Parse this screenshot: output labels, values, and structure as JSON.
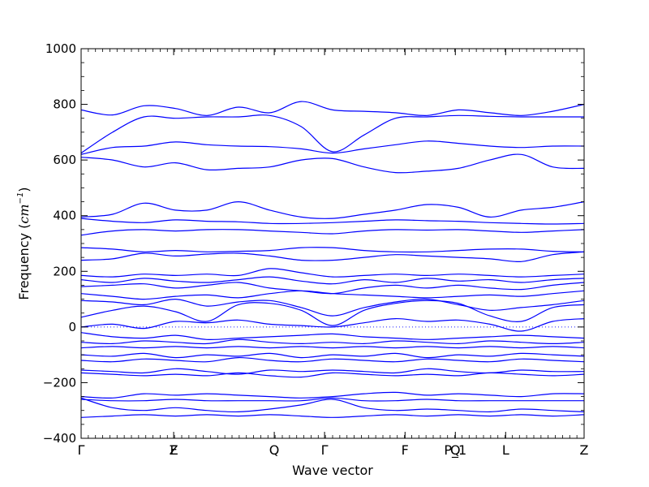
{
  "chart_data": {
    "type": "line",
    "title": "",
    "xlabel": "Wave vector",
    "ylabel": "Frequency (",
    "ylabel_math": "cm",
    "ylabel_sup": "−1",
    "ylabel_close": ")",
    "ylim": [
      -400,
      1000
    ],
    "yticks": [
      -400,
      -200,
      0,
      200,
      400,
      600,
      800,
      1000
    ],
    "ytick_labels": [
      "−400",
      "−200",
      "0",
      "200",
      "400",
      "600",
      "800",
      "1000"
    ],
    "xlim": [
      0,
      10
    ],
    "xticks": [
      0,
      1.84,
      3.84,
      4.84,
      6.44,
      7.44,
      8.44,
      10
    ],
    "xtick_labels": [
      "Γ",
      "Z",
      "Q",
      "Γ",
      "F",
      "P_1",
      "L",
      "Z"
    ],
    "overstruck_labels": [
      {
        "x": 1.84,
        "label": "F"
      },
      {
        "x": 7.44,
        "label": "Q"
      }
    ],
    "zero_line": true,
    "grid": false,
    "legend": "none",
    "line_color": "#0000ff",
    "bands_approx": [
      [
        780,
        762,
        795,
        785,
        760,
        790,
        770,
        810,
        780,
        775,
        770,
        760,
        780,
        770,
        760,
        775,
        800
      ],
      [
        625,
        700,
        755,
        750,
        755,
        755,
        760,
        720,
        630,
        690,
        750,
        755,
        760,
        757,
        755,
        755,
        755
      ],
      [
        620,
        645,
        650,
        665,
        655,
        650,
        648,
        640,
        625,
        640,
        655,
        668,
        660,
        650,
        645,
        650,
        650
      ],
      [
        610,
        600,
        575,
        590,
        565,
        570,
        575,
        600,
        605,
        575,
        555,
        560,
        570,
        600,
        620,
        575,
        570
      ],
      [
        395,
        405,
        445,
        420,
        420,
        450,
        420,
        395,
        390,
        405,
        420,
        440,
        430,
        395,
        420,
        430,
        450
      ],
      [
        390,
        380,
        375,
        385,
        380,
        378,
        372,
        372,
        375,
        380,
        385,
        382,
        380,
        375,
        372,
        370,
        372
      ],
      [
        330,
        345,
        350,
        345,
        350,
        350,
        345,
        340,
        335,
        345,
        350,
        348,
        350,
        345,
        340,
        345,
        350
      ],
      [
        285,
        280,
        270,
        275,
        270,
        272,
        275,
        285,
        285,
        275,
        270,
        270,
        275,
        280,
        280,
        272,
        270
      ],
      [
        240,
        245,
        265,
        255,
        262,
        265,
        255,
        240,
        240,
        250,
        260,
        255,
        250,
        245,
        235,
        260,
        270
      ],
      [
        185,
        180,
        190,
        185,
        190,
        185,
        210,
        195,
        180,
        185,
        190,
        185,
        190,
        185,
        180,
        185,
        190
      ],
      [
        170,
        160,
        175,
        165,
        160,
        170,
        180,
        165,
        155,
        170,
        160,
        175,
        165,
        170,
        160,
        170,
        175
      ],
      [
        145,
        150,
        155,
        140,
        150,
        160,
        140,
        130,
        120,
        140,
        150,
        140,
        150,
        140,
        135,
        150,
        160
      ],
      [
        120,
        110,
        100,
        110,
        115,
        105,
        120,
        130,
        120,
        115,
        110,
        105,
        110,
        115,
        110,
        120,
        130
      ],
      [
        95,
        90,
        80,
        100,
        75,
        90,
        95,
        70,
        40,
        70,
        90,
        100,
        80,
        60,
        70,
        80,
        95
      ],
      [
        35,
        60,
        75,
        55,
        20,
        80,
        85,
        60,
        5,
        60,
        85,
        95,
        85,
        40,
        20,
        70,
        80
      ],
      [
        0,
        10,
        -5,
        20,
        15,
        25,
        10,
        5,
        0,
        15,
        30,
        20,
        25,
        10,
        -15,
        20,
        30
      ],
      [
        -20,
        -35,
        -40,
        -30,
        -45,
        -40,
        -35,
        -30,
        -25,
        -35,
        -40,
        -45,
        -40,
        -35,
        -30,
        -35,
        -40
      ],
      [
        -55,
        -60,
        -50,
        -55,
        -60,
        -45,
        -55,
        -60,
        -55,
        -60,
        -50,
        -55,
        -60,
        -50,
        -55,
        -60,
        -55
      ],
      [
        -75,
        -70,
        -75,
        -70,
        -75,
        -70,
        -75,
        -70,
        -75,
        -70,
        -75,
        -70,
        -75,
        -70,
        -75,
        -70,
        -75
      ],
      [
        -100,
        -105,
        -95,
        -110,
        -100,
        -105,
        -95,
        -110,
        -100,
        -105,
        -95,
        -110,
        -100,
        -105,
        -95,
        -100,
        -105
      ],
      [
        -120,
        -125,
        -115,
        -120,
        -125,
        -110,
        -120,
        -125,
        -115,
        -120,
        -125,
        -115,
        -120,
        -125,
        -115,
        -120,
        -125
      ],
      [
        -155,
        -160,
        -165,
        -150,
        -160,
        -170,
        -155,
        -160,
        -155,
        -160,
        -165,
        -150,
        -160,
        -165,
        -155,
        -160,
        -160
      ],
      [
        -165,
        -170,
        -175,
        -170,
        -175,
        -165,
        -175,
        -180,
        -165,
        -170,
        -175,
        -170,
        -175,
        -165,
        -170,
        -175,
        -170
      ],
      [
        -250,
        -255,
        -240,
        -245,
        -240,
        -245,
        -250,
        -255,
        -250,
        -240,
        -235,
        -245,
        -240,
        -245,
        -250,
        -240,
        -240
      ],
      [
        -260,
        -265,
        -265,
        -260,
        -265,
        -265,
        -265,
        -265,
        -255,
        -265,
        -265,
        -260,
        -265,
        -265,
        -265,
        -265,
        -265
      ],
      [
        -255,
        -290,
        -300,
        -290,
        -300,
        -305,
        -295,
        -280,
        -260,
        -290,
        -300,
        -295,
        -300,
        -305,
        -295,
        -300,
        -305
      ],
      [
        -325,
        -320,
        -315,
        -320,
        -315,
        -320,
        -315,
        -320,
        -325,
        -320,
        -315,
        -320,
        -315,
        -320,
        -315,
        -320,
        -315
      ]
    ]
  }
}
